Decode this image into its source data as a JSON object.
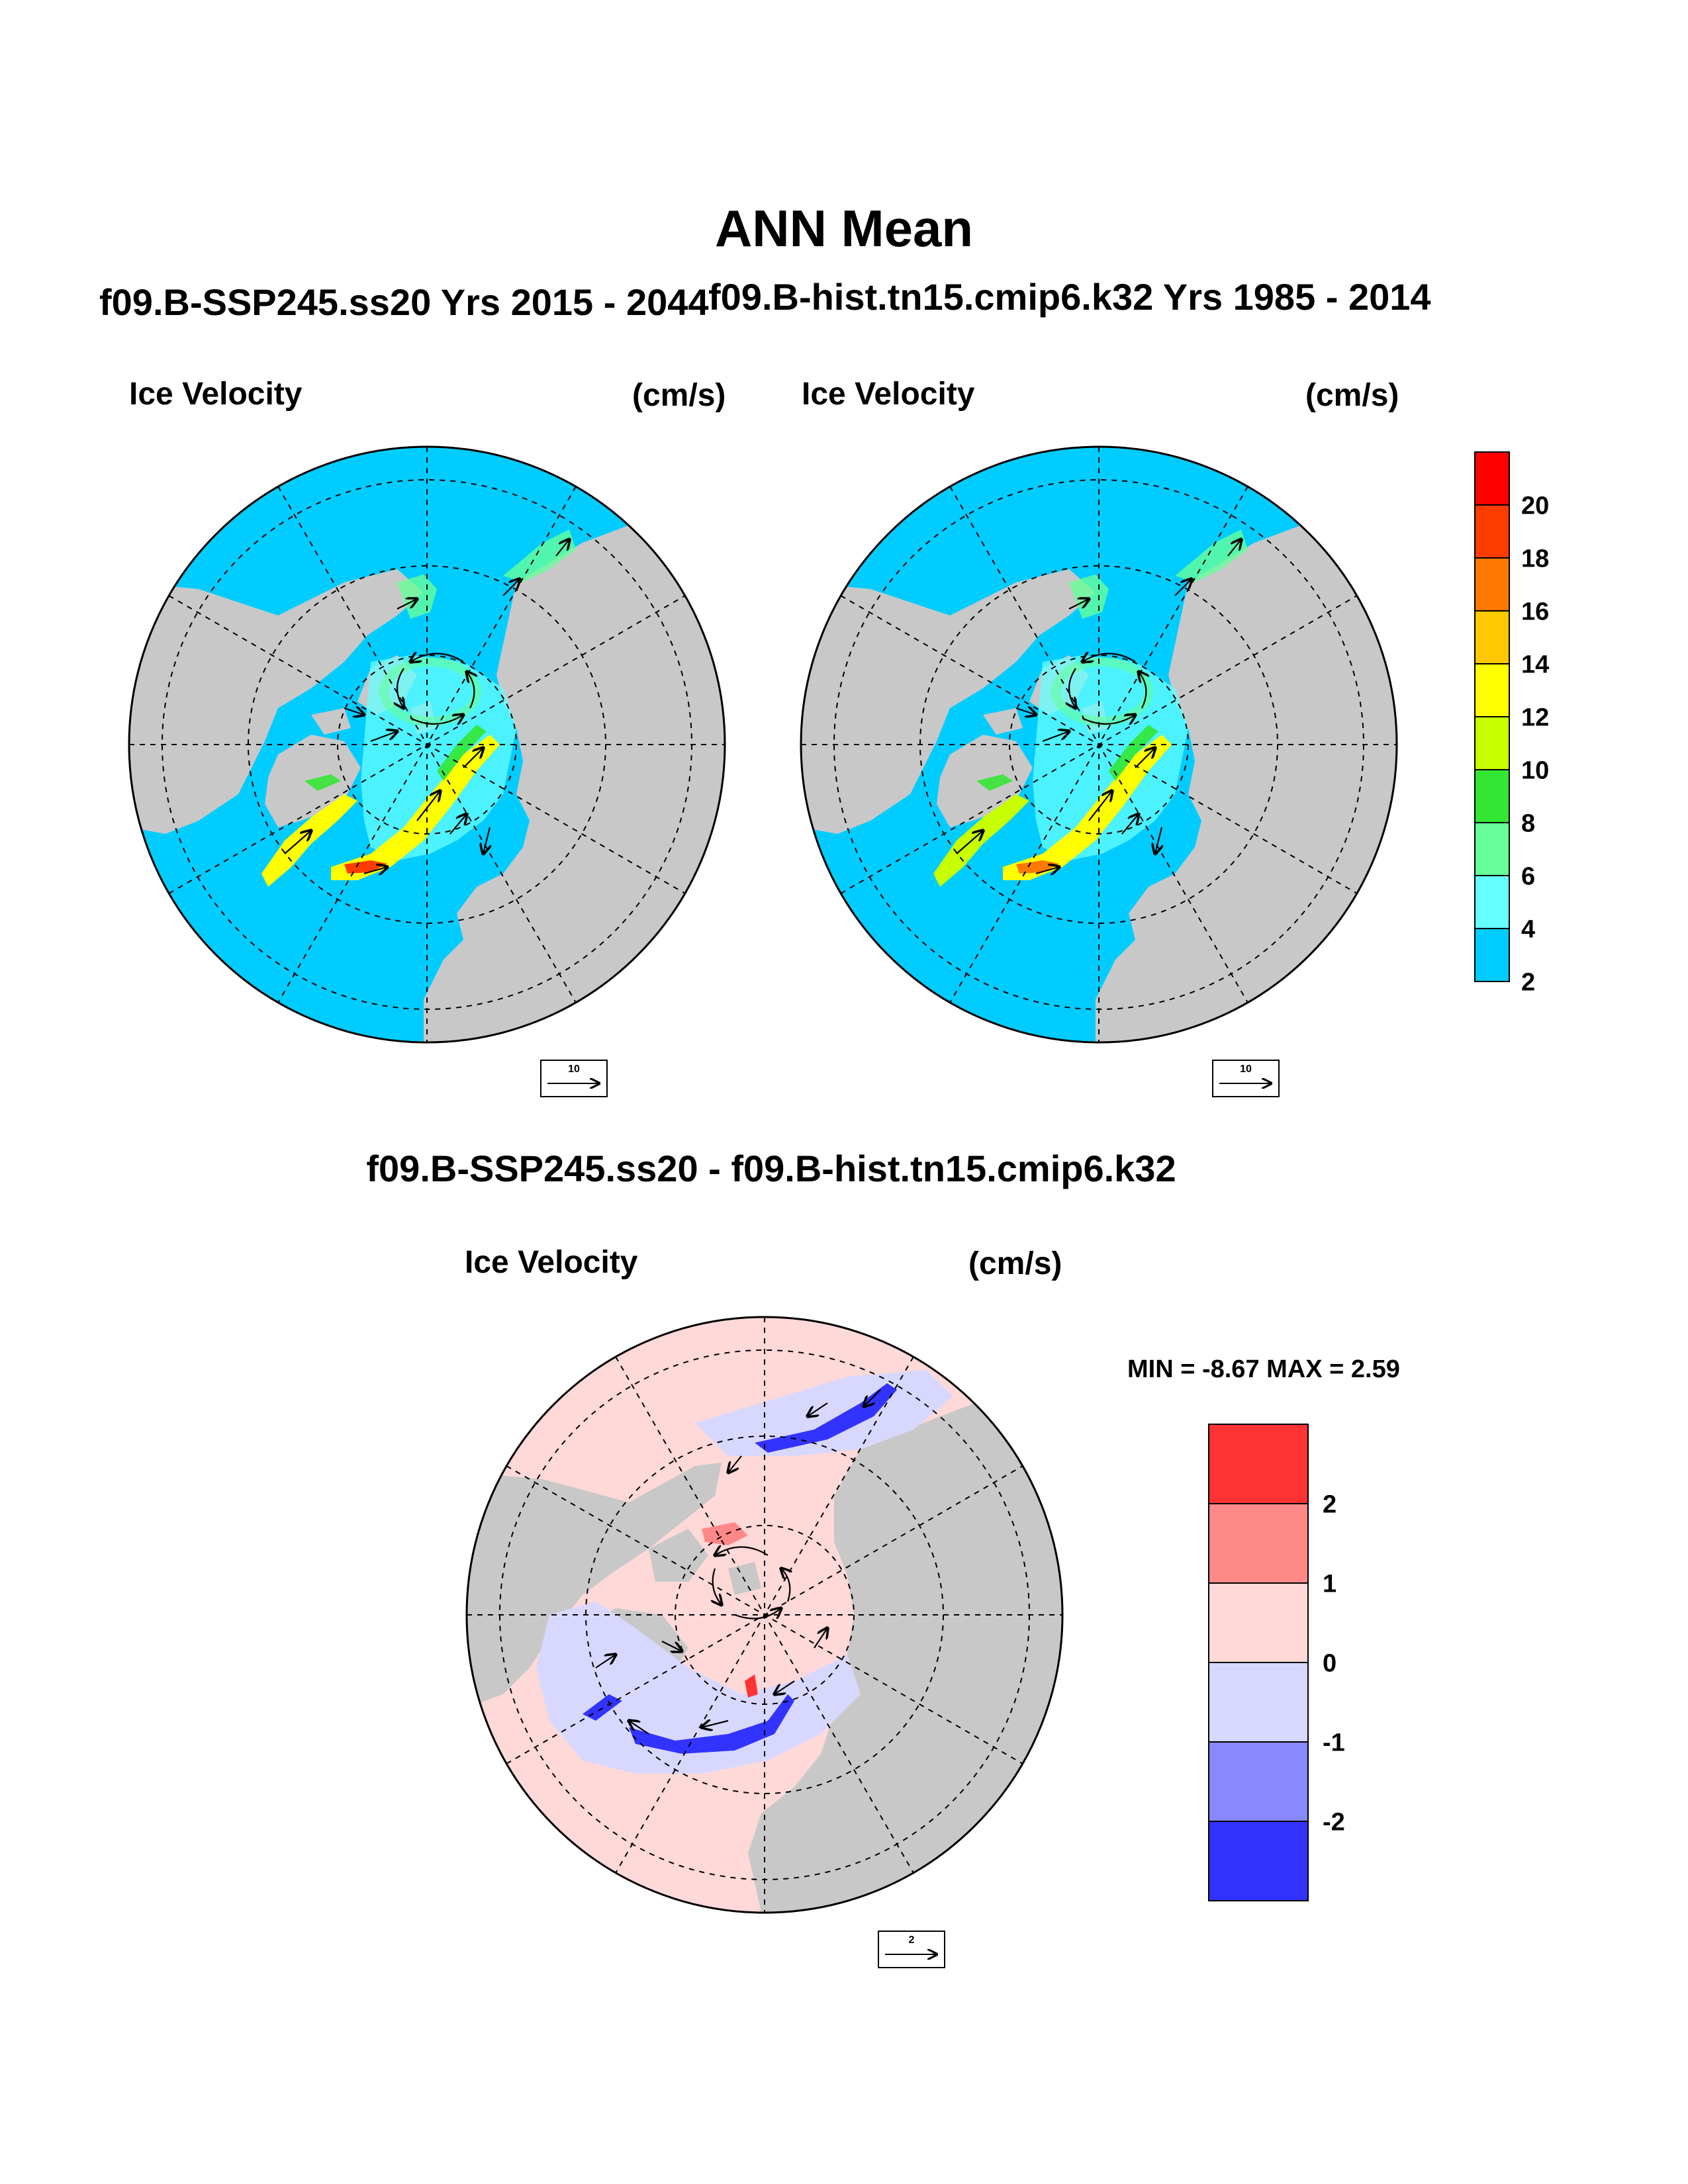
{
  "main_title": "ANN Mean",
  "panels": {
    "left": {
      "title": "f09.B-SSP245.ss20  Yrs 2015 - 2044",
      "label": "Ice Velocity",
      "units": "(cm/s)",
      "ref_vector": "10"
    },
    "right": {
      "title": "f09.B-hist.tn15.cmip6.k32  Yrs 1985 - 2014",
      "label": "Ice Velocity",
      "units": "(cm/s)",
      "ref_vector": "10"
    },
    "diff": {
      "title": "f09.B-SSP245.ss20 - f09.B-hist.tn15.cmip6.k32",
      "label": "Ice Velocity",
      "units": "(cm/s)",
      "ref_vector": "2",
      "min_max": "MIN =  -8.67 MAX =   2.59"
    }
  },
  "colorbar_speed": {
    "labels": [
      "20",
      "18",
      "16",
      "14",
      "12",
      "10",
      "8",
      "6",
      "4",
      "2"
    ],
    "colors_top_to_bottom": [
      "#ff0000",
      "#ff3c00",
      "#ff7800",
      "#ffc800",
      "#ffff00",
      "#c8ff00",
      "#33e633",
      "#66ff99",
      "#66ffff",
      "#00ccff"
    ]
  },
  "colorbar_diff": {
    "labels": [
      "2",
      "1",
      "0",
      "-1",
      "-2"
    ],
    "colors_top_to_bottom": [
      "#ff3333",
      "#ff8888",
      "#ffd8d8",
      "#d8d8ff",
      "#8888ff",
      "#3333ff"
    ]
  },
  "colors": {
    "land": "#c8c8c8",
    "ocean_base": "#00ccff",
    "diff_base": "#ffd8d8"
  }
}
